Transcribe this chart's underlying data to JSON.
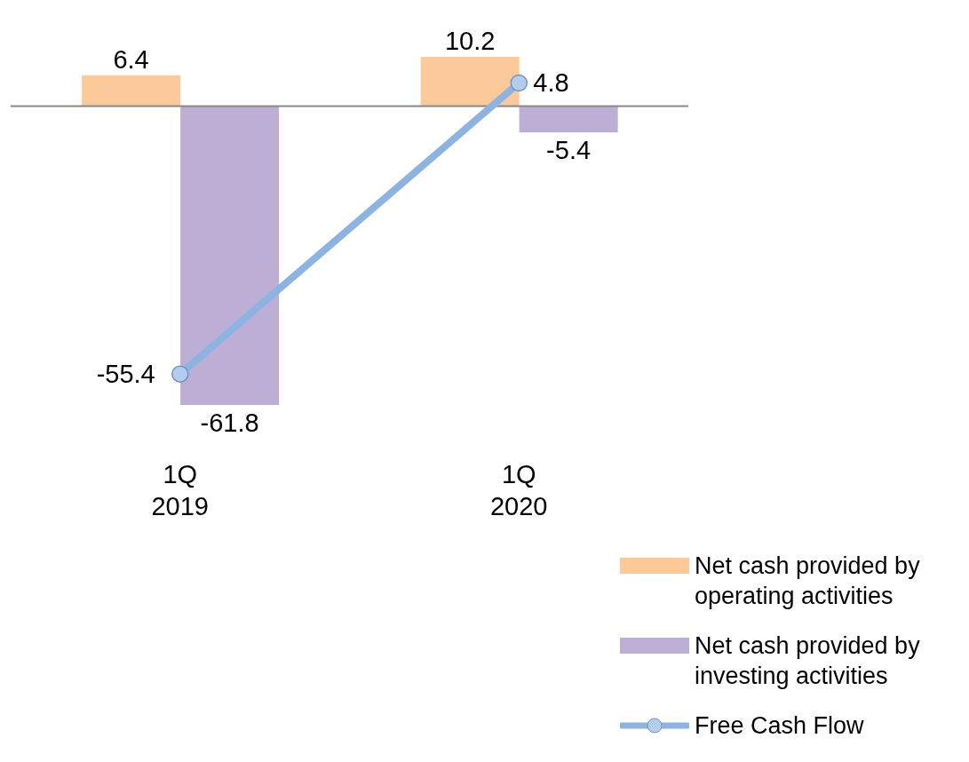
{
  "chart_data": {
    "type": "bar",
    "categories": [
      "1Q 2019",
      "1Q 2020"
    ],
    "series": [
      {
        "name": "Net cash provided by operating activities",
        "color": "#fcc99a",
        "values": [
          6.4,
          10.2
        ]
      },
      {
        "name": "Net cash provided by investing activities",
        "color": "#bcaed4",
        "values": [
          -61.8,
          -5.4
        ]
      },
      {
        "name": "Free Cash Flow",
        "type": "line",
        "color": "#8db3e2",
        "values": [
          -55.4,
          4.8
        ]
      }
    ],
    "data_labels": true,
    "legend": "bottom right",
    "marker": "circle",
    "line_style": "solid"
  }
}
